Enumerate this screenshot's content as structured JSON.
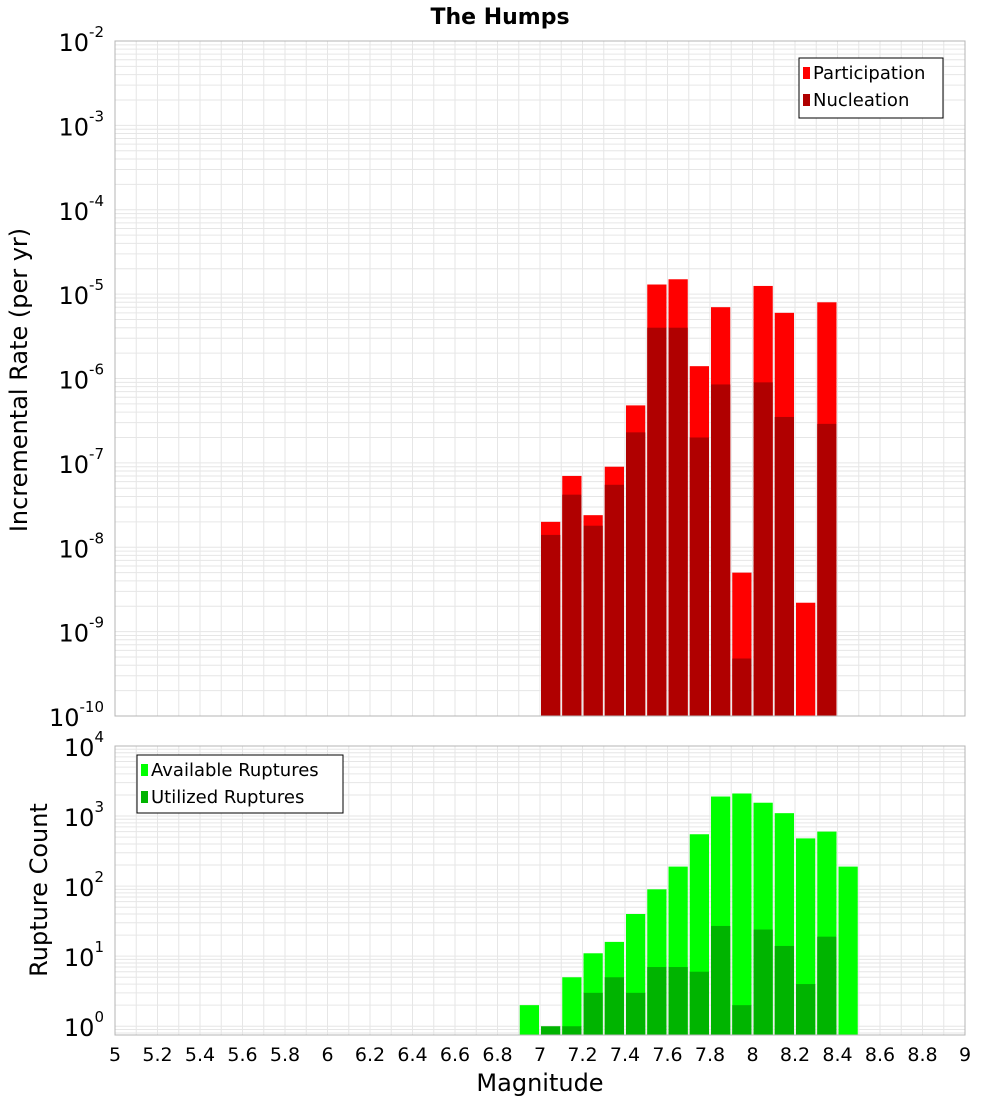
{
  "title": "The Humps",
  "colors": {
    "participation": "#ff0000",
    "nucleation": "#b00000",
    "available": "#00ff00",
    "utilized": "#00b400",
    "grid": "#e6e6e6",
    "frame": "#b4b4b4"
  },
  "chart_data": [
    {
      "type": "bar",
      "ylabel": "Incremental Rate (per yr)",
      "y_scale": "log",
      "ylim": [
        1e-10,
        0.01
      ],
      "y_tick_exponents": [
        "-10",
        "-9",
        "-8",
        "-7",
        "-6",
        "-5",
        "-4",
        "-3",
        "-2"
      ],
      "xlim": [
        5,
        9
      ],
      "bar_width": 0.1,
      "legend_position": "top-right",
      "grid": true,
      "series": [
        {
          "name": "Participation",
          "color_key": "participation",
          "points": [
            {
              "x": 7.05,
              "y": 2e-08
            },
            {
              "x": 7.15,
              "y": 7e-08
            },
            {
              "x": 7.25,
              "y": 2.4e-08
            },
            {
              "x": 7.35,
              "y": 9e-08
            },
            {
              "x": 7.45,
              "y": 4.8e-07
            },
            {
              "x": 7.55,
              "y": 1.3e-05
            },
            {
              "x": 7.65,
              "y": 1.5e-05
            },
            {
              "x": 7.75,
              "y": 1.4e-06
            },
            {
              "x": 7.85,
              "y": 7e-06
            },
            {
              "x": 7.95,
              "y": 5e-09
            },
            {
              "x": 8.05,
              "y": 1.25e-05
            },
            {
              "x": 8.15,
              "y": 6e-06
            },
            {
              "x": 8.25,
              "y": 2.2e-09
            },
            {
              "x": 8.35,
              "y": 8e-06
            }
          ]
        },
        {
          "name": "Nucleation",
          "color_key": "nucleation",
          "points": [
            {
              "x": 7.05,
              "y": 1.4e-08
            },
            {
              "x": 7.15,
              "y": 4.2e-08
            },
            {
              "x": 7.25,
              "y": 1.8e-08
            },
            {
              "x": 7.35,
              "y": 5.5e-08
            },
            {
              "x": 7.45,
              "y": 2.3e-07
            },
            {
              "x": 7.55,
              "y": 4e-06
            },
            {
              "x": 7.65,
              "y": 4e-06
            },
            {
              "x": 7.75,
              "y": 2e-07
            },
            {
              "x": 7.85,
              "y": 8.5e-07
            },
            {
              "x": 7.95,
              "y": 4.8e-10
            },
            {
              "x": 8.05,
              "y": 9e-07
            },
            {
              "x": 8.15,
              "y": 3.5e-07
            },
            {
              "x": 8.35,
              "y": 2.9e-07
            }
          ]
        }
      ]
    },
    {
      "type": "bar",
      "ylabel": "Rupture Count",
      "xlabel": "Magnitude",
      "y_scale": "log",
      "ylim": [
        0.75,
        10000
      ],
      "y_tick_exponents": [
        "0",
        "1",
        "2",
        "3",
        "4"
      ],
      "xlim": [
        5,
        9
      ],
      "x_ticks": [
        "5",
        "5.2",
        "5.4",
        "5.6",
        "5.8",
        "6",
        "6.2",
        "6.4",
        "6.6",
        "6.8",
        "7",
        "7.2",
        "7.4",
        "7.6",
        "7.8",
        "8",
        "8.2",
        "8.4",
        "8.6",
        "8.8",
        "9"
      ],
      "bar_width": 0.1,
      "legend_position": "top-left",
      "grid": true,
      "series": [
        {
          "name": "Available Ruptures",
          "color_key": "available",
          "points": [
            {
              "x": 6.95,
              "y": 2
            },
            {
              "x": 7.15,
              "y": 5
            },
            {
              "x": 7.25,
              "y": 11
            },
            {
              "x": 7.35,
              "y": 16
            },
            {
              "x": 7.45,
              "y": 40
            },
            {
              "x": 7.55,
              "y": 90
            },
            {
              "x": 7.65,
              "y": 190
            },
            {
              "x": 7.75,
              "y": 550
            },
            {
              "x": 7.85,
              "y": 1900
            },
            {
              "x": 7.95,
              "y": 2100
            },
            {
              "x": 8.05,
              "y": 1550
            },
            {
              "x": 8.15,
              "y": 1100
            },
            {
              "x": 8.25,
              "y": 480
            },
            {
              "x": 8.35,
              "y": 600
            },
            {
              "x": 8.45,
              "y": 190
            }
          ]
        },
        {
          "name": "Utilized Ruptures",
          "color_key": "utilized",
          "points": [
            {
              "x": 7.05,
              "y": 1
            },
            {
              "x": 7.15,
              "y": 1
            },
            {
              "x": 7.25,
              "y": 3
            },
            {
              "x": 7.35,
              "y": 5
            },
            {
              "x": 7.45,
              "y": 3
            },
            {
              "x": 7.55,
              "y": 7
            },
            {
              "x": 7.65,
              "y": 7
            },
            {
              "x": 7.75,
              "y": 6
            },
            {
              "x": 7.85,
              "y": 27
            },
            {
              "x": 7.95,
              "y": 2
            },
            {
              "x": 8.05,
              "y": 24
            },
            {
              "x": 8.15,
              "y": 14
            },
            {
              "x": 8.25,
              "y": 4
            },
            {
              "x": 8.35,
              "y": 19
            }
          ]
        }
      ]
    }
  ]
}
